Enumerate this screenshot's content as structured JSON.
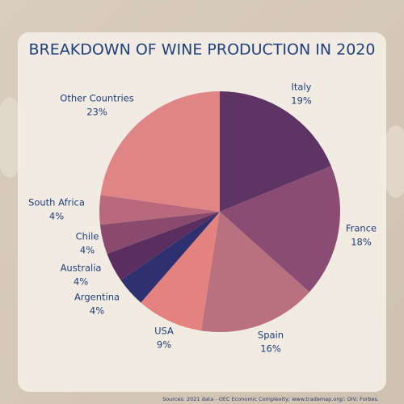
{
  "chart_data": {
    "type": "pie",
    "title": "BREAKDOWN OF WINE PRODUCTION IN 2020",
    "categories": [
      "Italy",
      "France",
      "Spain",
      "USA",
      "Argentina",
      "Australia",
      "Chile",
      "South Africa",
      "Other Countries"
    ],
    "values": [
      19,
      18,
      16,
      9,
      4,
      4,
      4,
      4,
      23
    ],
    "value_labels": [
      "19%",
      "18%",
      "16%",
      "9%",
      "4%",
      "4%",
      "4%",
      "4%",
      "23%"
    ],
    "colors": [
      "#5e3464",
      "#8a4c72",
      "#b9707f",
      "#e3827f",
      "#2e3070",
      "#5a2e5e",
      "#8a4a6e",
      "#b86a7c",
      "#e08585"
    ],
    "source": "Sources: 2021 data - OEC Economic Complexity; www.trademap.org/; OIV; Forbes."
  }
}
